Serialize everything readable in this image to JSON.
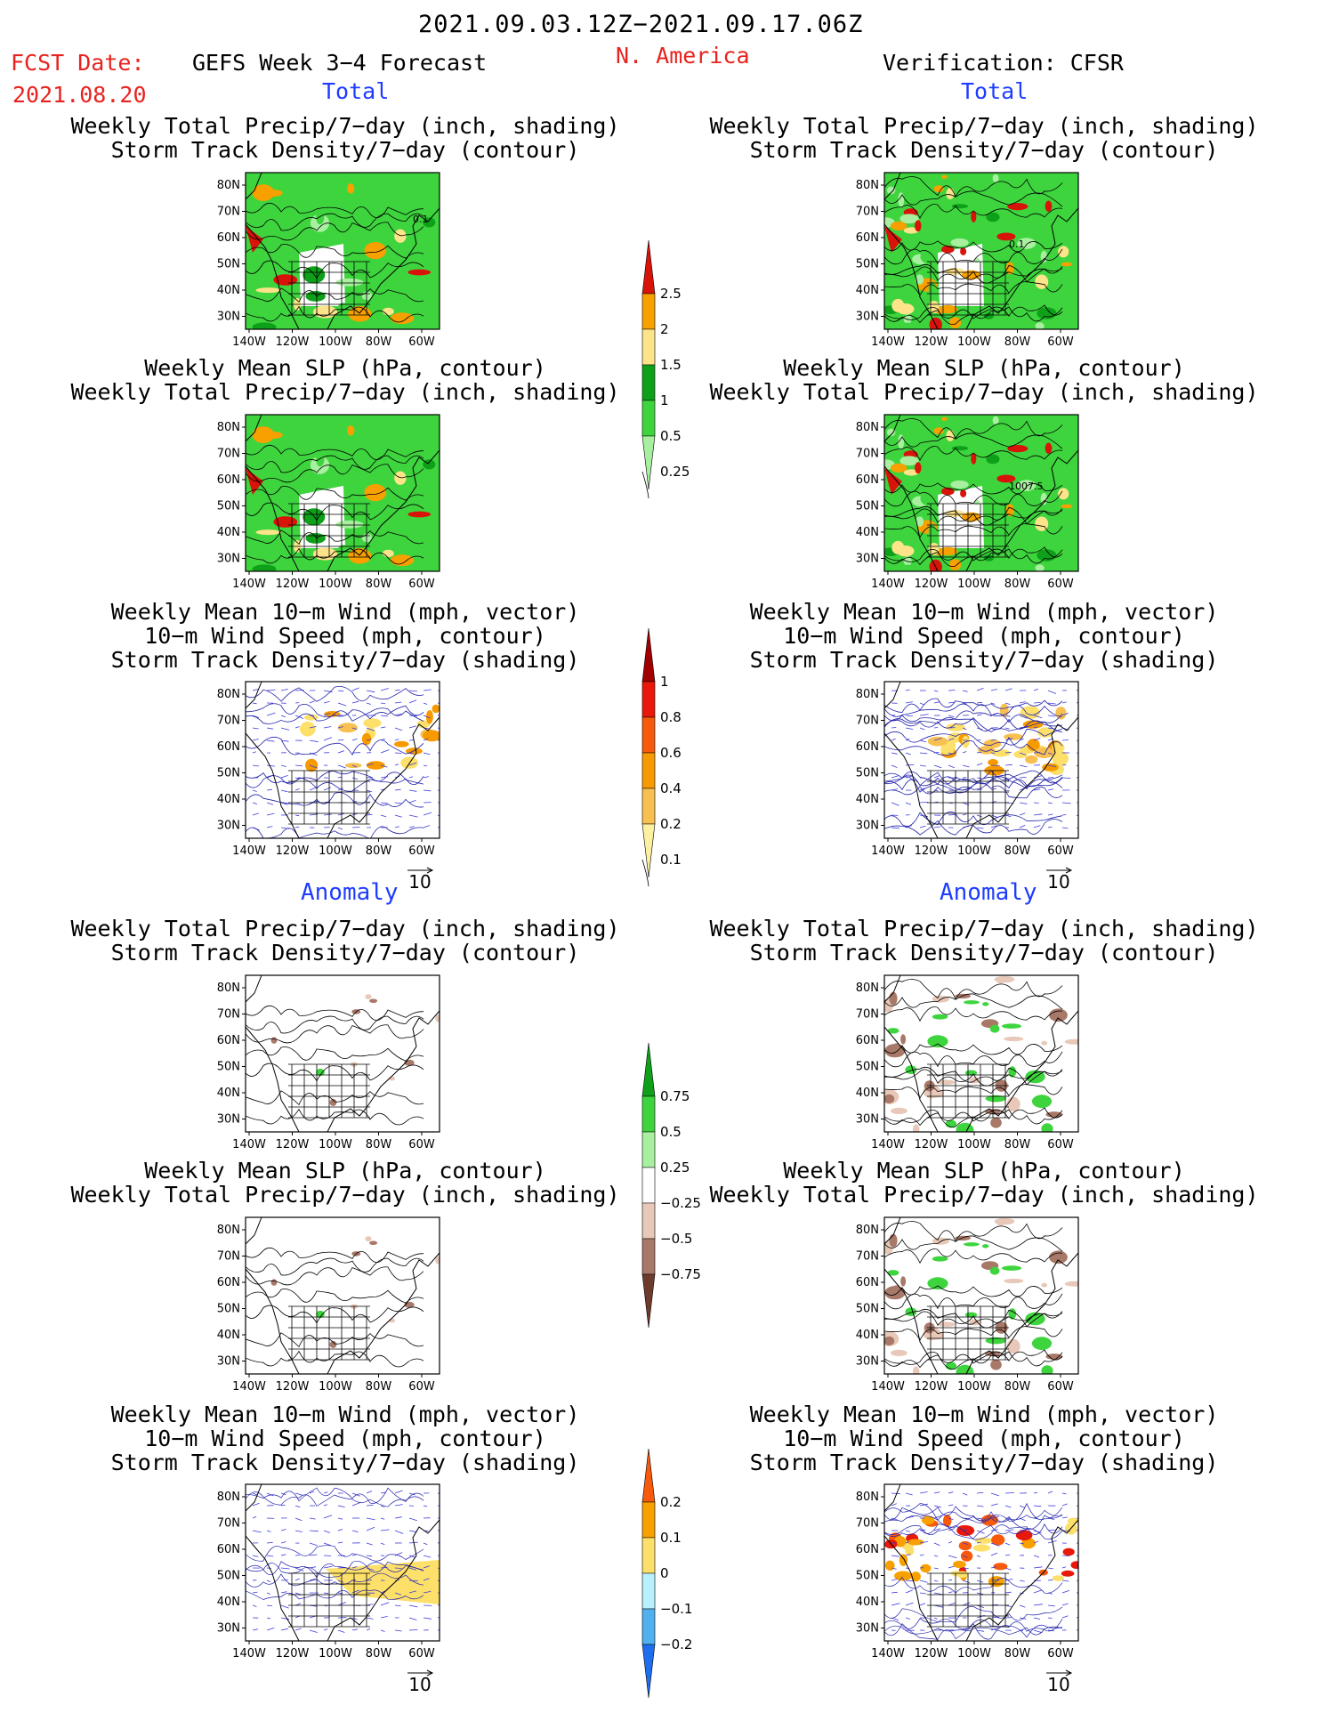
{
  "header": {
    "period": "2021.09.03.12Z−2021.09.17.06Z",
    "fcst_date_label": "FCST Date:",
    "fcst_date_value": "2021.08.20",
    "forecast_title": "GEFS Week 3−4 Forecast",
    "region": "N. America",
    "verification": "Verification: CFSR",
    "left_total": "Total",
    "right_total": "Total",
    "left_anomaly": "Anomaly",
    "right_anomaly": "Anomaly"
  },
  "titles": {
    "precip_storm": [
      "Weekly Total Precip/7−day (inch, shading)",
      "Storm Track Density/7−day (contour)"
    ],
    "slp_precip": [
      "Weekly Mean SLP (hPa, contour)",
      "Weekly Total Precip/7−day (inch, shading)"
    ],
    "wind_storm": [
      "Weekly Mean 10−m Wind (mph, vector)",
      "10−m Wind Speed (mph, contour)",
      "Storm Track Density/7−day (shading)"
    ]
  },
  "axes": {
    "lat_ticks": [
      "80N",
      "70N",
      "60N",
      "50N",
      "40N",
      "30N"
    ],
    "lon_ticks": [
      "140W",
      "120W",
      "100W",
      "80W",
      "60W"
    ]
  },
  "vector_reference": "10",
  "contour_labels": {
    "fcst_storm": "0.1",
    "obs_storm": "0.1",
    "obs_slp": "1007.5"
  },
  "colorbars": {
    "precip_total": {
      "labels": [
        "2.5",
        "2",
        "1.5",
        "1",
        "0.5",
        "0.25"
      ],
      "colors": [
        "#d8140a",
        "#f7a000",
        "#fde38a",
        "#0fa01a",
        "#3ed43e",
        "#a8f0a0"
      ]
    },
    "storm_total": {
      "labels": [
        "1",
        "0.8",
        "0.6",
        "0.4",
        "0.2",
        "0.1"
      ],
      "colors": [
        "#a00000",
        "#e8180a",
        "#f75a0a",
        "#f79a00",
        "#f7c050",
        "#fdf0a0"
      ]
    },
    "precip_anom": {
      "labels": [
        "0.75",
        "0.5",
        "0.25",
        "−0.25",
        "−0.5",
        "−0.75"
      ],
      "colors": [
        "#0fa01a",
        "#3ed43e",
        "#a8f0a0",
        "#ffffff",
        "#e8c8b8",
        "#a87868",
        "#6e3c2c"
      ]
    },
    "storm_anom": {
      "labels": [
        "0.2",
        "0.1",
        "0",
        "−0.1",
        "−0.2"
      ],
      "colors": [
        "#f75a0a",
        "#f7a000",
        "#fde06a",
        "#b8f0ff",
        "#50b0f0",
        "#1e6ef0"
      ]
    }
  }
}
